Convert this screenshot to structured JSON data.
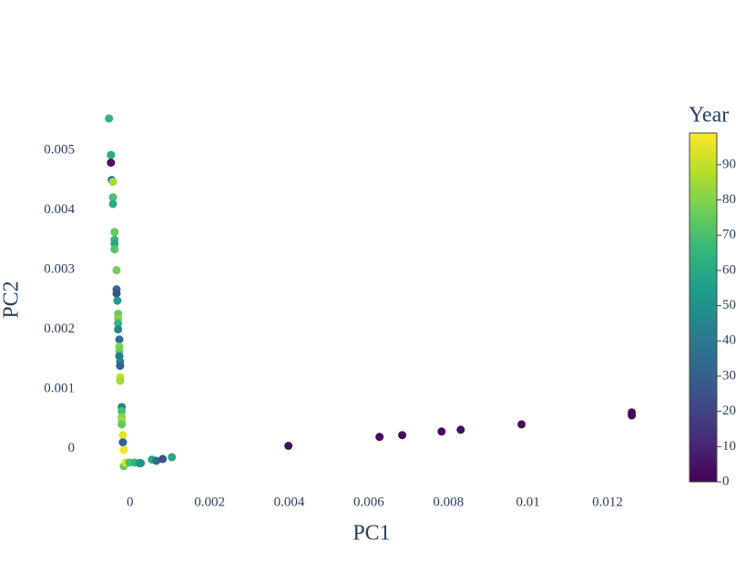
{
  "chart_data": {
    "type": "scatter",
    "x_label": "PC1",
    "y_label": "PC2",
    "x": [
      -0.00053,
      -0.00048,
      -0.00048,
      -0.00046,
      -0.00043,
      -0.00043,
      -0.00043,
      -0.00039,
      -0.00039,
      -0.00039,
      -0.00039,
      -0.00034,
      -0.00034,
      -0.00034,
      -0.00032,
      -0.0003,
      -0.0003,
      -0.0003,
      -0.0003,
      -0.00027,
      -0.00027,
      -0.00027,
      -0.00027,
      -0.00025,
      -0.00025,
      -0.00025,
      -0.00025,
      -0.00021,
      -0.00021,
      -0.00021,
      -0.00021,
      -0.00021,
      -0.00018,
      -0.00018,
      -0.00016,
      -0.00016,
      -0.00011,
      -2e-05,
      0.00011,
      0.00023,
      0.00027,
      0.00055,
      0.00066,
      0.00082,
      0.00105,
      0.00398,
      0.00627,
      0.00684,
      0.00783,
      0.00831,
      0.00984,
      0.01261,
      0.01261
    ],
    "y": [
      0.00553,
      0.00492,
      0.00479,
      0.0045,
      0.00447,
      0.00421,
      0.0041,
      0.00363,
      0.0035,
      0.00343,
      0.00334,
      0.00299,
      0.00267,
      0.0026,
      0.00248,
      0.00226,
      0.00218,
      0.0021,
      0.002,
      0.00183,
      0.00171,
      0.00163,
      0.00155,
      0.00146,
      0.00139,
      0.0012,
      0.00114,
      0.0007,
      0.00063,
      0.00053,
      0.00047,
      0.00041,
      0.00023,
      0.00011,
      -2e-05,
      -0.00029,
      -0.00023,
      -0.00023,
      -0.00023,
      -0.00024,
      -0.00024,
      -0.00018,
      -0.0002,
      -0.00017,
      -0.00014,
      5e-05,
      0.0002,
      0.00023,
      0.00029,
      0.00032,
      0.00041,
      0.00061,
      0.00056
    ],
    "color_values": [
      65,
      60,
      5,
      35,
      85,
      70,
      60,
      75,
      65,
      60,
      72,
      78,
      35,
      25,
      55,
      75,
      80,
      65,
      45,
      35,
      80,
      75,
      40,
      45,
      30,
      90,
      85,
      45,
      70,
      80,
      85,
      75,
      95,
      30,
      97,
      75,
      95,
      70,
      65,
      55,
      50,
      60,
      35,
      25,
      60,
      3,
      3,
      3,
      3,
      3,
      3,
      3,
      3
    ],
    "colorbar_title": "Year",
    "colorscale": [
      "#440154",
      "#482878",
      "#3e4989",
      "#31688e",
      "#26828e",
      "#1f9e89",
      "#35b779",
      "#6ece58",
      "#b5de2b",
      "#fde725"
    ],
    "clim": [
      0,
      99
    ],
    "cticks": [
      0,
      10,
      20,
      30,
      40,
      50,
      60,
      70,
      80,
      90
    ],
    "xlim": [
      -0.00098,
      0.0131
    ],
    "xticks": [
      0,
      0.002,
      0.004,
      0.006,
      0.008,
      0.01,
      0.012
    ],
    "ylim": [
      -0.00072,
      0.00576
    ],
    "yticks": [
      0,
      0.001,
      0.002,
      0.003,
      0.004,
      0.005
    ]
  }
}
